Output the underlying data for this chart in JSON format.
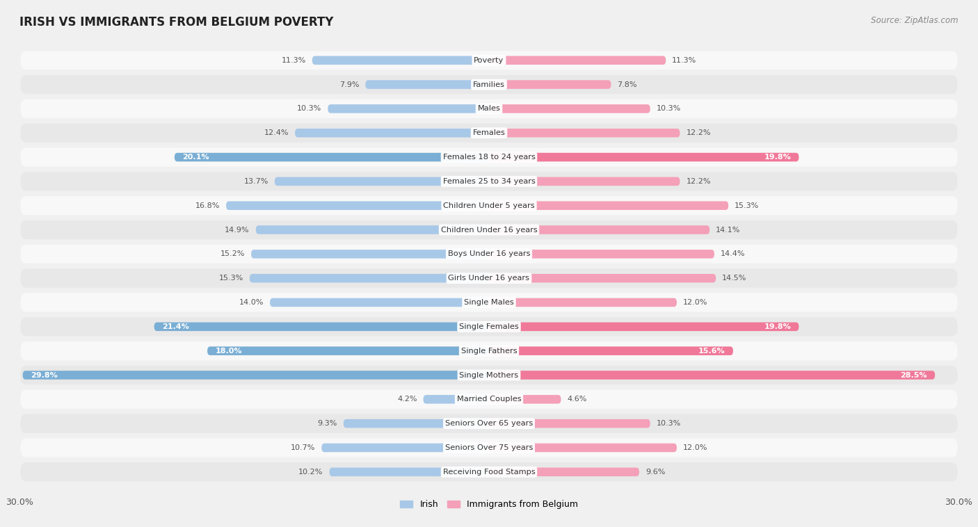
{
  "title": "IRISH VS IMMIGRANTS FROM BELGIUM POVERTY",
  "source": "Source: ZipAtlas.com",
  "categories": [
    "Poverty",
    "Families",
    "Males",
    "Females",
    "Females 18 to 24 years",
    "Females 25 to 34 years",
    "Children Under 5 years",
    "Children Under 16 years",
    "Boys Under 16 years",
    "Girls Under 16 years",
    "Single Males",
    "Single Females",
    "Single Fathers",
    "Single Mothers",
    "Married Couples",
    "Seniors Over 65 years",
    "Seniors Over 75 years",
    "Receiving Food Stamps"
  ],
  "irish": [
    11.3,
    7.9,
    10.3,
    12.4,
    20.1,
    13.7,
    16.8,
    14.9,
    15.2,
    15.3,
    14.0,
    21.4,
    18.0,
    29.8,
    4.2,
    9.3,
    10.7,
    10.2
  ],
  "belgium": [
    11.3,
    7.8,
    10.3,
    12.2,
    19.8,
    12.2,
    15.3,
    14.1,
    14.4,
    14.5,
    12.0,
    19.8,
    15.6,
    28.5,
    4.6,
    10.3,
    12.0,
    9.6
  ],
  "irish_color_normal": "#a8c8e8",
  "irish_color_highlight": "#7aaed4",
  "belgium_color_normal": "#f4a0b8",
  "belgium_color_highlight": "#f07898",
  "highlight_rows": [
    4,
    11,
    12,
    13
  ],
  "axis_max": 30.0,
  "legend_irish": "Irish",
  "legend_belgium": "Immigrants from Belgium",
  "background_color": "#f0f0f0",
  "row_bg_odd": "#f8f8f8",
  "row_bg_even": "#e8e8e8"
}
